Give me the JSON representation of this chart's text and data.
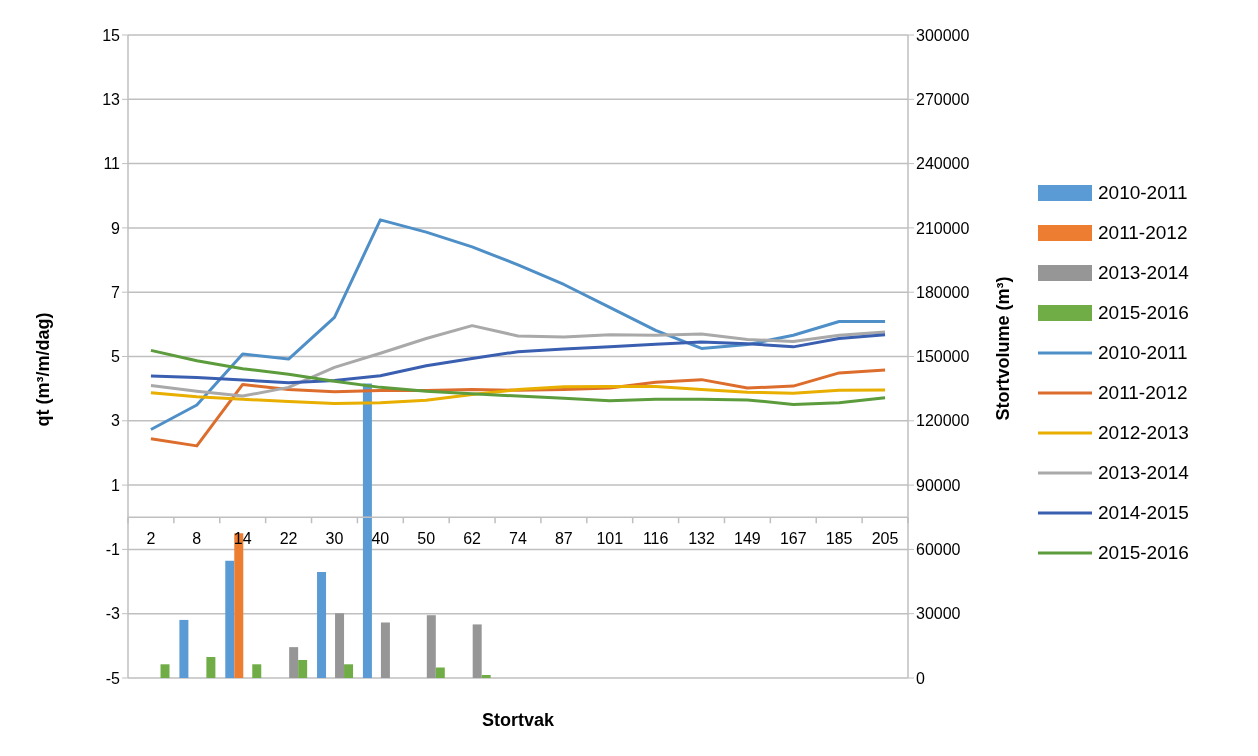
{
  "chart_data": {
    "type": "line",
    "categories": [
      "2",
      "8",
      "14",
      "22",
      "30",
      "40",
      "50",
      "62",
      "74",
      "87",
      "101",
      "116",
      "132",
      "149",
      "167",
      "185",
      "205"
    ],
    "xlabel": "Stortvak",
    "ylabel": "qt (m³/m/dag)",
    "y2label": "Stortvolume (m³)",
    "ylim": [
      -5,
      15
    ],
    "yticks": [
      -5,
      -3,
      -1,
      1,
      3,
      5,
      7,
      9,
      11,
      13,
      15
    ],
    "y2lim": [
      0,
      300000
    ],
    "y2ticks": [
      0,
      30000,
      60000,
      90000,
      120000,
      150000,
      180000,
      210000,
      240000,
      270000,
      300000
    ],
    "grid": "y",
    "legend": "right",
    "marker": "none",
    "line_style": "solid",
    "series": [
      {
        "name": "2010-2011",
        "type": "bar",
        "axis": "y2",
        "color": "#5b9bd5",
        "values": [
          null,
          27100,
          54700,
          null,
          49500,
          137400,
          null,
          null,
          null,
          null,
          null,
          null,
          null,
          null,
          null,
          null,
          null
        ]
      },
      {
        "name": "2011-2012",
        "type": "bar",
        "axis": "y2",
        "color": "#ed7d31",
        "values": [
          null,
          null,
          67500,
          null,
          null,
          null,
          null,
          null,
          null,
          null,
          null,
          null,
          null,
          null,
          null,
          null,
          null
        ]
      },
      {
        "name": "2013-2014",
        "type": "bar",
        "axis": "y2",
        "color": "#969696",
        "values": [
          null,
          null,
          null,
          14400,
          30200,
          25900,
          29300,
          25000,
          null,
          null,
          null,
          null,
          null,
          null,
          null,
          null,
          null
        ]
      },
      {
        "name": "2015-2016",
        "type": "bar",
        "axis": "y2",
        "color": "#70ad47",
        "values": [
          6400,
          9800,
          6400,
          8400,
          6400,
          null,
          4900,
          1400,
          null,
          null,
          null,
          null,
          null,
          null,
          null,
          null,
          null
        ]
      },
      {
        "name": "2010-2011",
        "color": "#4f8fc8",
        "values": [
          2.73,
          3.49,
          5.08,
          4.92,
          6.22,
          9.25,
          8.87,
          8.41,
          7.85,
          7.24,
          6.53,
          5.81,
          5.25,
          5.37,
          5.66,
          6.09,
          6.09
        ]
      },
      {
        "name": "2011-2012",
        "color": "#dc6d2c",
        "values": [
          2.44,
          2.22,
          4.13,
          3.97,
          3.9,
          3.94,
          3.94,
          3.97,
          3.95,
          3.97,
          4.02,
          4.2,
          4.28,
          4.02,
          4.08,
          4.49,
          4.58
        ]
      },
      {
        "name": "2012-2013",
        "color": "#e8ae00",
        "values": [
          3.87,
          3.75,
          3.67,
          3.6,
          3.54,
          3.56,
          3.64,
          3.82,
          3.97,
          4.06,
          4.07,
          4.07,
          3.97,
          3.89,
          3.86,
          3.95,
          3.96
        ]
      },
      {
        "name": "2013-2014",
        "color": "#a9a9a9",
        "values": [
          4.1,
          3.92,
          3.77,
          4.04,
          4.66,
          5.1,
          5.56,
          5.96,
          5.64,
          5.61,
          5.68,
          5.66,
          5.7,
          5.53,
          5.47,
          5.66,
          5.76
        ]
      },
      {
        "name": "2014-2015",
        "color": "#3a5fb0",
        "values": [
          4.39,
          4.35,
          4.27,
          4.18,
          4.25,
          4.4,
          4.71,
          4.94,
          5.15,
          5.23,
          5.3,
          5.38,
          5.45,
          5.4,
          5.3,
          5.56,
          5.68
        ]
      },
      {
        "name": "2015-2016",
        "color": "#5c9c3c",
        "values": [
          5.19,
          4.87,
          4.62,
          4.45,
          4.23,
          4.04,
          3.92,
          3.84,
          3.77,
          3.7,
          3.62,
          3.67,
          3.67,
          3.65,
          3.51,
          3.56,
          3.72
        ]
      }
    ]
  }
}
